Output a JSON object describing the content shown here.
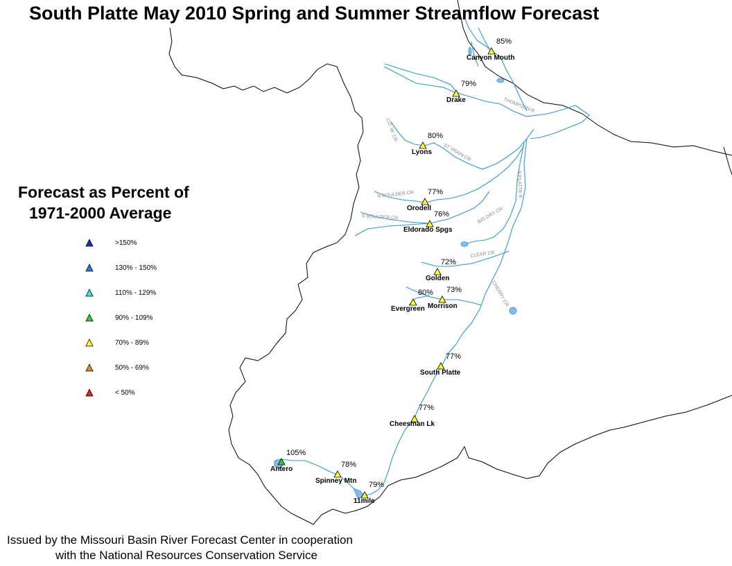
{
  "title": "South Platte May 2010 Spring and Summer Streamflow Forecast",
  "legend": {
    "title_line1": "Forecast as Percent of",
    "title_line2": "1971-2000 Average",
    "items": [
      {
        "label": ">150%",
        "color": "#1a2fb8"
      },
      {
        "label": "130% - 150%",
        "color": "#2f78e0"
      },
      {
        "label": "110% - 129%",
        "color": "#3fe0e0"
      },
      {
        "label": "90% - 109%",
        "color": "#33cc33"
      },
      {
        "label": "70% - 89%",
        "color": "#ffff33"
      },
      {
        "label": "50% - 69%",
        "color": "#e08a30"
      },
      {
        "label": "< 50%",
        "color": "#e02020"
      }
    ]
  },
  "stations": [
    {
      "name": "Canyon Mouth",
      "percent": "85%",
      "color": "#ffff33"
    },
    {
      "name": "Drake",
      "percent": "79%",
      "color": "#ffff33"
    },
    {
      "name": "Lyons",
      "percent": "80%",
      "color": "#ffff33"
    },
    {
      "name": "Orodell",
      "percent": "77%",
      "color": "#ffff33"
    },
    {
      "name": "Eldorado Spgs",
      "percent": "76%",
      "color": "#ffff33"
    },
    {
      "name": "Golden",
      "percent": "72%",
      "color": "#ffff33"
    },
    {
      "name": "Morrison",
      "percent": "73%",
      "color": "#ffff33"
    },
    {
      "name": "Evergreen",
      "percent": "80%",
      "color": "#ffff33"
    },
    {
      "name": "South Platte",
      "percent": "77%",
      "color": "#ffff33"
    },
    {
      "name": "Cheesman Lk",
      "percent": "77%",
      "color": "#ffff33"
    },
    {
      "name": "Antero",
      "percent": "105%",
      "color": "#33cc33"
    },
    {
      "name": "Spinney Mtn",
      "percent": "78%",
      "color": "#ffff33"
    },
    {
      "name": "11mile",
      "percent": "79%",
      "color": "#ffff33"
    }
  ],
  "rivers": [
    {
      "name": "THOMPSON R"
    },
    {
      "name": "CO. W. CR"
    },
    {
      "name": "ST VRAIN CR"
    },
    {
      "name": "N BOULDER CR"
    },
    {
      "name": "S BOULDER CR"
    },
    {
      "name": "S PLATTE R"
    },
    {
      "name": "BIG DRY CR"
    },
    {
      "name": "CLEAR CR"
    },
    {
      "name": "CHERRY CR"
    }
  ],
  "colors": {
    "river": "#2a9ad8",
    "boundary": "#000000",
    "lake": "#8ab8e8"
  },
  "footer": {
    "line1": "Issued by the Missouri Basin River Forecast Center in cooperation",
    "line2": "with the National Resources Conservation Service"
  }
}
